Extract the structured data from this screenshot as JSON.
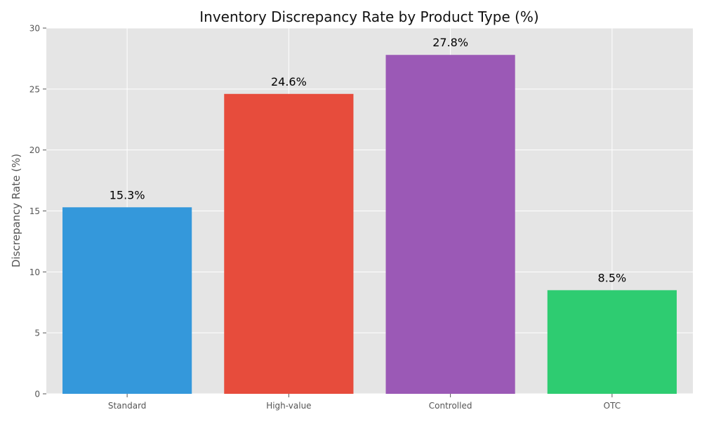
{
  "chart_data": {
    "type": "bar",
    "title": "Inventory Discrepancy Rate by Product Type (%)",
    "xlabel": "",
    "ylabel": "Discrepancy Rate (%)",
    "categories": [
      "Standard",
      "High-value",
      "Controlled",
      "OTC"
    ],
    "values": [
      15.3,
      24.6,
      27.8,
      8.5
    ],
    "data_labels": [
      "15.3%",
      "24.6%",
      "27.8%",
      "8.5%"
    ],
    "colors": [
      "#3498db",
      "#e74c3c",
      "#9b59b6",
      "#2ecc71"
    ],
    "ylim": [
      0,
      30
    ],
    "yticks": [
      0,
      5,
      10,
      15,
      20,
      25,
      30
    ],
    "ytick_labels": [
      "0",
      "5",
      "10",
      "15",
      "20",
      "25",
      "30"
    ],
    "grid": true,
    "legend": "none",
    "background_color": "#e5e5e5",
    "grid_color": "#ffffff"
  }
}
